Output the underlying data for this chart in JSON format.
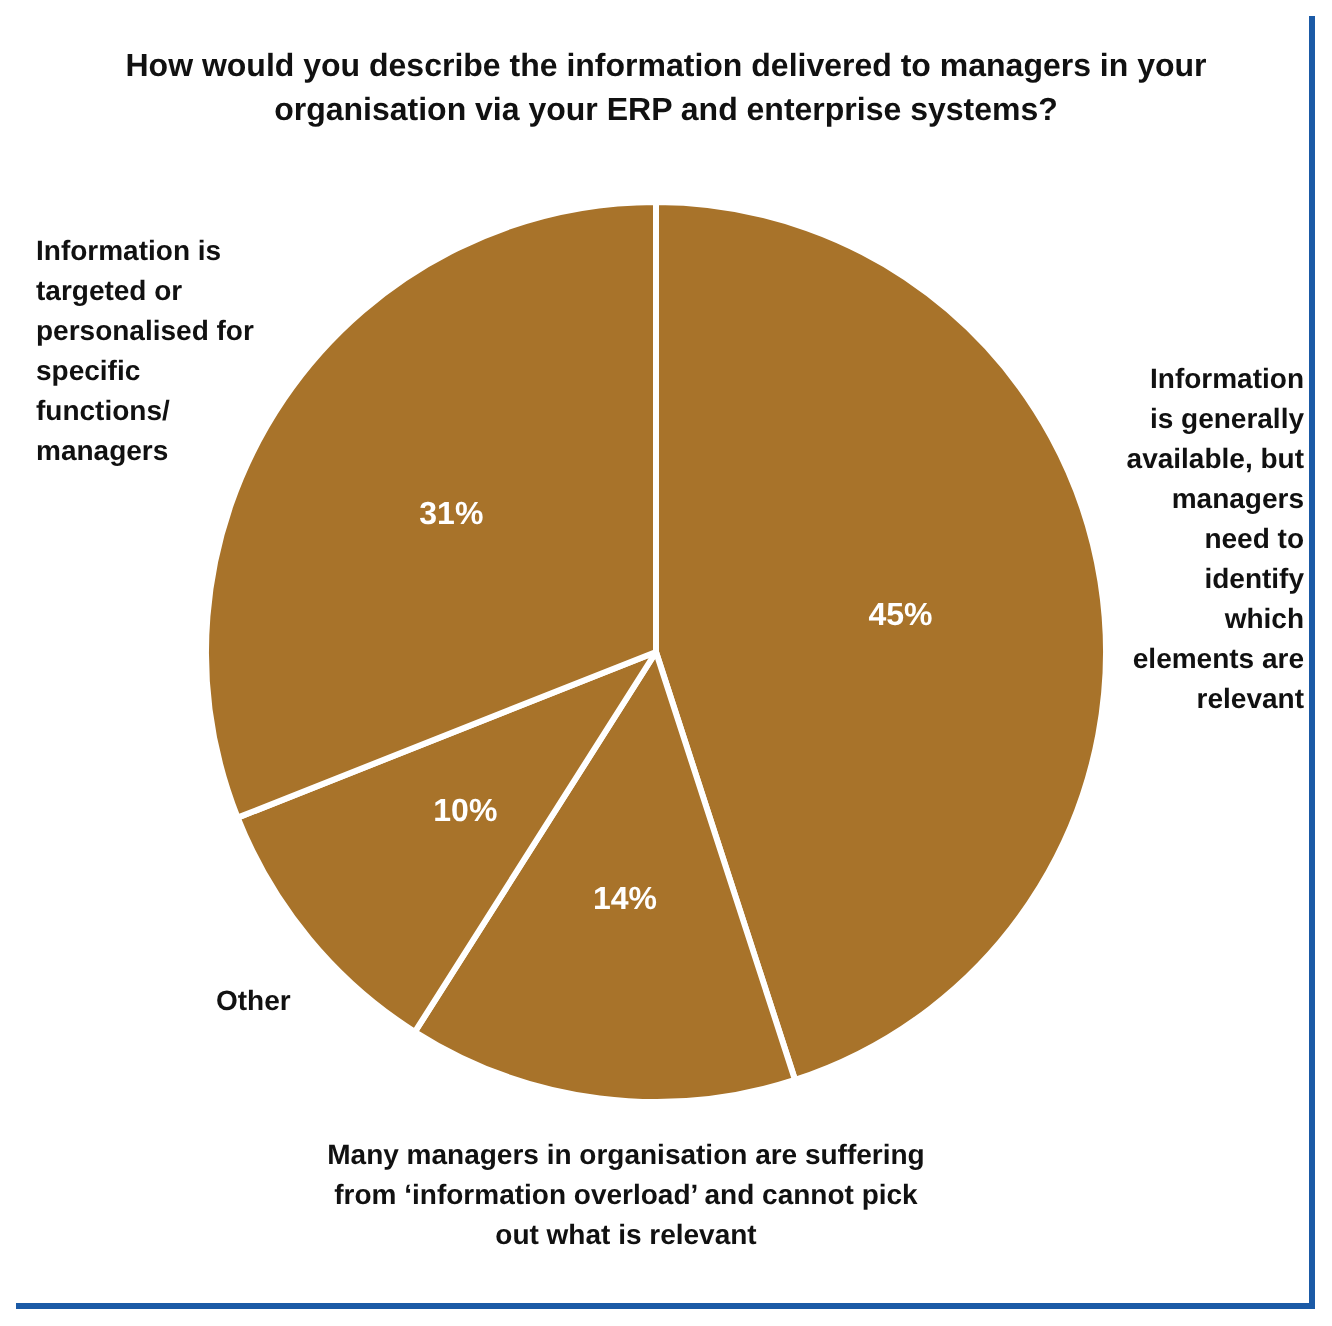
{
  "chart_data": {
    "type": "pie",
    "title": "How would you describe the information delivered to managers in your organisation via your ERP and enterprise systems?",
    "categories": [
      "Information is generally available, but managers need to identify which elements are relevant",
      "Many managers in organisation are suffering from ‘information overload’ and cannot pick out what is relevant",
      "Other",
      "Information is targeted or personalised for specific functions/ managers"
    ],
    "values": [
      45,
      14,
      10,
      31
    ],
    "colors": [
      "#a8732a",
      "#a8732a",
      "#a8732a",
      "#a8732a"
    ],
    "value_labels": [
      "45%",
      "14%",
      "10%",
      "31%"
    ]
  }
}
